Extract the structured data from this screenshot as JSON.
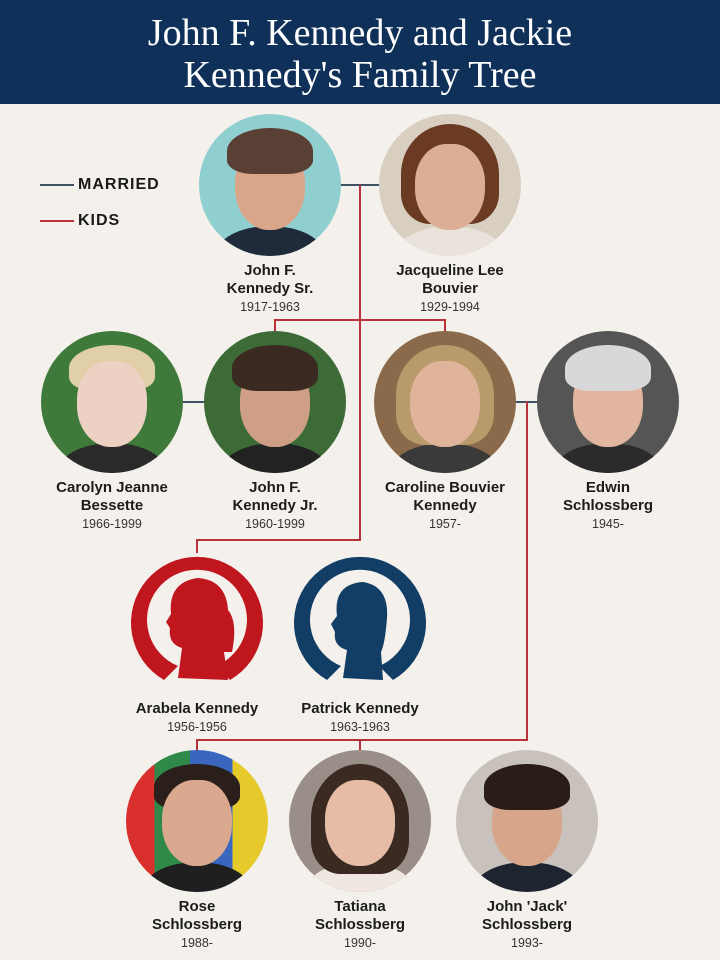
{
  "title": {
    "line1": "John F. Kennedy and Jackie",
    "line2": "Kennedy's Family Tree"
  },
  "legend": {
    "married": "MARRIED",
    "kids": "KIDS",
    "married_color": "#3e5266",
    "kids_color": "#b8323a"
  },
  "people": [
    {
      "name1": "John F.",
      "name2": "Kennedy Sr.",
      "dates": "1917-1963"
    },
    {
      "name1": "Jacqueline Lee",
      "name2": "Bouvier",
      "dates": "1929-1994"
    },
    {
      "name1": "Carolyn Jeanne",
      "name2": "Bessette",
      "dates": "1966-1999"
    },
    {
      "name1": "John F.",
      "name2": "Kennedy Jr.",
      "dates": "1960-1999"
    },
    {
      "name1": "Caroline Bouvier",
      "name2": "Kennedy",
      "dates": "1957-"
    },
    {
      "name1": "Edwin",
      "name2": "Schlossberg",
      "dates": "1945-"
    },
    {
      "name1": "Arabela Kennedy",
      "name2": "",
      "dates": "1956-1956",
      "icon": "female-silhouette-icon",
      "color": "#c0161e"
    },
    {
      "name1": "Patrick Kennedy",
      "name2": "",
      "dates": "1963-1963",
      "icon": "male-silhouette-icon",
      "color": "#123e66"
    },
    {
      "name1": "Rose",
      "name2": "Schlossberg",
      "dates": "1988-"
    },
    {
      "name1": "Tatiana",
      "name2": "Schlossberg",
      "dates": "1990-"
    },
    {
      "name1": "John 'Jack'",
      "name2": "Schlossberg",
      "dates": "1993-"
    }
  ]
}
